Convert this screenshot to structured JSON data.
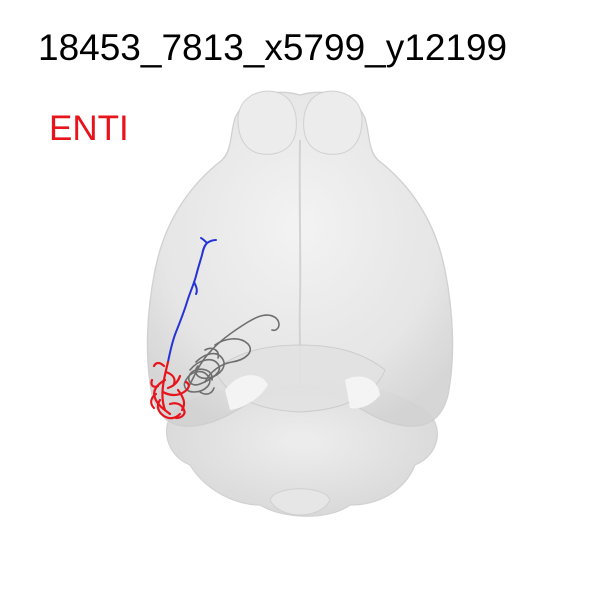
{
  "figure": {
    "title": "18453_7813_x5799_y12199",
    "region_label": "ENTI"
  },
  "colors": {
    "background": "#ffffff",
    "title_text": "#000000",
    "region_label_text": "#e8141b",
    "brain_fill": "#dcdcdc",
    "brain_edge": "#c9c9c9",
    "axon_blue": "#2433d6",
    "axon_red": "#e8141b",
    "dendrite_gray": "#6e6e6e"
  }
}
